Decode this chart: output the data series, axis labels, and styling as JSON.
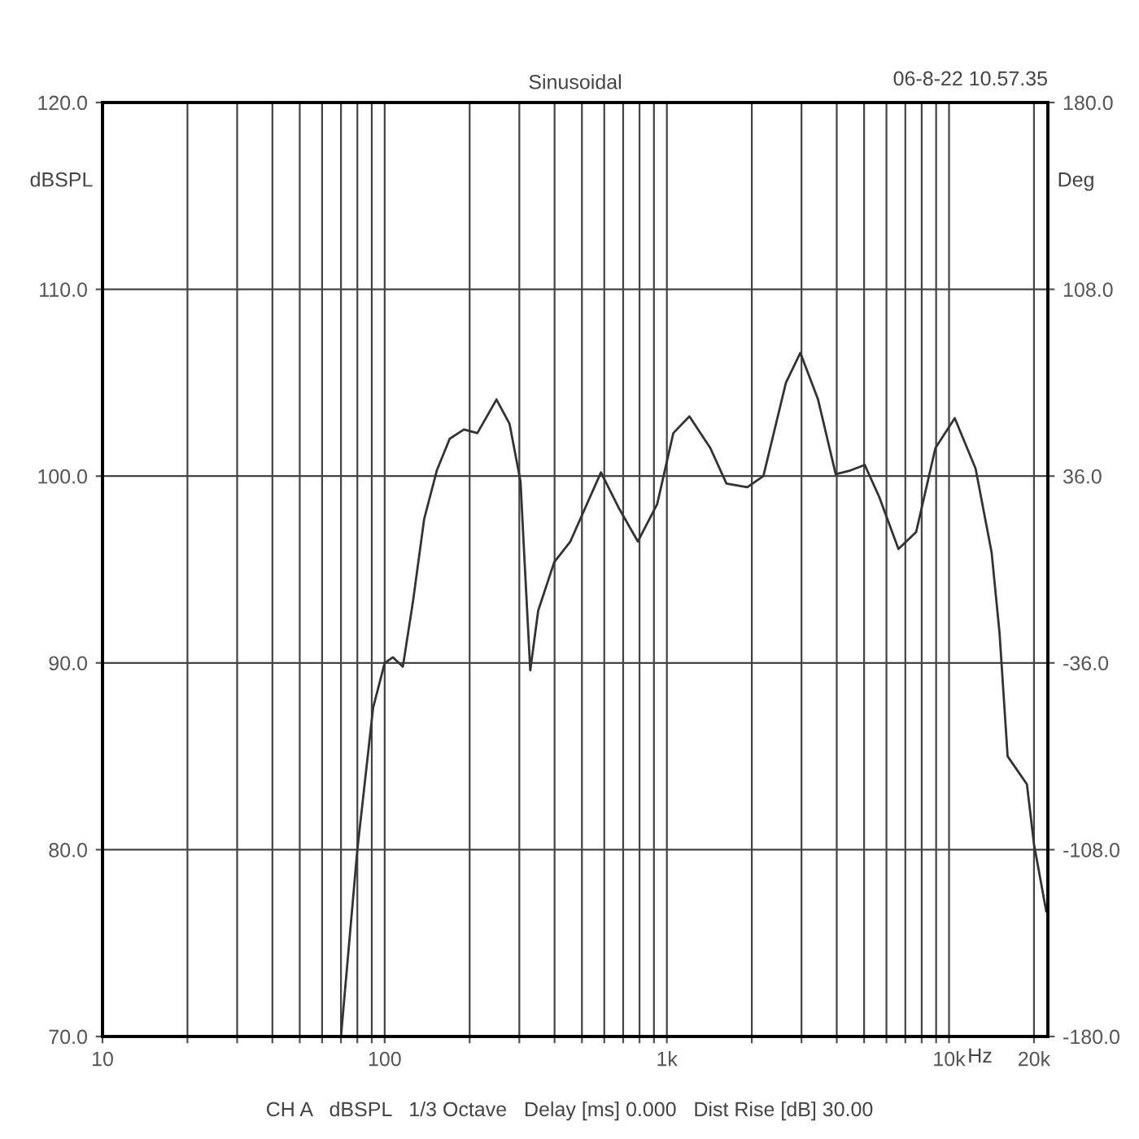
{
  "chart_data": {
    "type": "line",
    "title": "Sinusoidal",
    "xlabel": "Hz",
    "ylabel": "dBSPL",
    "y2label": "Deg",
    "annotations": [
      "06-8-22 10.57.35",
      "CH A   dBSPL   1/3 Octave   Delay [ms] 0.000   Dist Rise [dB] 30.00"
    ],
    "log": "x",
    "grid": true,
    "legend": false,
    "marker": "none",
    "line_style": "solid",
    "xlim": [
      10,
      22400
    ],
    "ylim": [
      70,
      120
    ],
    "y2lim": [
      -180,
      180
    ],
    "xticks": [
      10,
      {
        "value": 20,
        "label": null
      },
      {
        "value": 30,
        "label": null
      },
      {
        "value": 40,
        "label": null
      },
      {
        "value": 50,
        "label": null
      },
      {
        "value": 60,
        "label": null
      },
      {
        "value": 70,
        "label": null
      },
      {
        "value": 80,
        "label": null
      },
      {
        "value": 90,
        "label": null
      },
      100,
      {
        "value": 200,
        "label": null
      },
      {
        "value": 300,
        "label": null
      },
      {
        "value": 400,
        "label": null
      },
      {
        "value": 500,
        "label": null
      },
      {
        "value": 600,
        "label": null
      },
      {
        "value": 700,
        "label": null
      },
      {
        "value": 800,
        "label": null
      },
      {
        "value": 900,
        "label": null
      },
      {
        "value": 1000,
        "label": "1k"
      },
      {
        "value": 2000,
        "label": null
      },
      {
        "value": 3000,
        "label": null
      },
      {
        "value": 4000,
        "label": null
      },
      {
        "value": 5000,
        "label": null
      },
      {
        "value": 6000,
        "label": null
      },
      {
        "value": 7000,
        "label": null
      },
      {
        "value": 8000,
        "label": null
      },
      {
        "value": 9000,
        "label": null
      },
      {
        "value": 10000,
        "label": "10k"
      },
      {
        "value": 20000,
        "label": "20k"
      }
    ],
    "yticks": [
      {
        "value": 70,
        "label": "70.0"
      },
      {
        "value": 80,
        "label": "80.0"
      },
      {
        "value": 90,
        "label": "90.0"
      },
      {
        "value": 100,
        "label": "100.0"
      },
      {
        "value": 110,
        "label": "110.0"
      },
      {
        "value": 120,
        "label": "120.0"
      }
    ],
    "y2ticks": [
      {
        "value": -180,
        "label": "-180.0"
      },
      {
        "value": -108,
        "label": "-108.0"
      },
      {
        "value": -36,
        "label": "-36.0"
      },
      {
        "value": 36,
        "label": "36.0"
      },
      {
        "value": 108,
        "label": "108.0"
      },
      {
        "value": 180,
        "label": "180.0"
      }
    ],
    "series": [
      {
        "color": "#333333",
        "x": [
          70,
          80,
          91,
          100,
          107,
          116,
          126,
          138,
          153,
          170,
          191,
          213,
          249,
          277,
          303,
          311,
          328,
          350,
          399,
          455,
          584,
          675,
          789,
          924,
          1054,
          1202,
          1426,
          1626,
          1928,
          2198,
          2642,
          2972,
          3434,
          3966,
          4467,
          5025,
          5652,
          6617,
          7643,
          8946,
          10476,
          12420,
          14157,
          15100,
          16130,
          18880,
          20000,
          22100
        ],
        "values": [
          70,
          80,
          87.6,
          90,
          90.3,
          89.8,
          93.3,
          97.7,
          100.3,
          102,
          102.5,
          102.3,
          104.1,
          102.8,
          99.7,
          96.3,
          89.6,
          92.8,
          95.4,
          96.5,
          100.2,
          98.3,
          96.5,
          98.5,
          102.3,
          103.2,
          101.5,
          99.6,
          99.4,
          100,
          105,
          106.6,
          104.1,
          100.1,
          100.3,
          100.6,
          98.9,
          96.1,
          97,
          101.5,
          103.1,
          100.4,
          95.9,
          91.6,
          85,
          83.5,
          80.3,
          76.7
        ]
      }
    ]
  }
}
